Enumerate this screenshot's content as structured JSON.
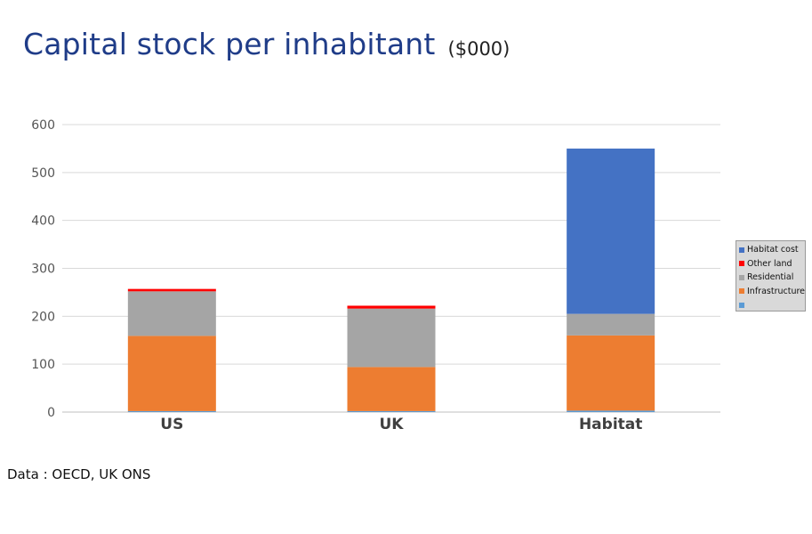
{
  "title": "Capital stock per inhabitant",
  "subtitle": "($000)",
  "source": "Data : OECD,  UK ONS",
  "chart_data": {
    "type": "bar",
    "stacked": true,
    "categories": [
      "US",
      "UK",
      "Habitat"
    ],
    "y_ticks": [
      "0",
      "100",
      "200",
      "300",
      "400",
      "500",
      "600"
    ],
    "ylim": [
      0,
      600
    ],
    "grid": true,
    "legend_position": "right",
    "series": [
      {
        "name": "",
        "color": "#5b9bd5",
        "values": [
          2,
          2,
          3
        ]
      },
      {
        "name": "Infrastructure",
        "color": "#ed7d31",
        "values": [
          157,
          92,
          157
        ]
      },
      {
        "name": "Residential",
        "color": "#a5a5a5",
        "values": [
          93,
          122,
          45
        ]
      },
      {
        "name": "Other land",
        "color": "#ff0000",
        "values": [
          5,
          6,
          0
        ]
      },
      {
        "name": "Habitat cost",
        "color": "#4472c4",
        "values": [
          0,
          0,
          345
        ]
      }
    ],
    "legend_order": [
      4,
      3,
      2,
      1,
      0
    ]
  }
}
